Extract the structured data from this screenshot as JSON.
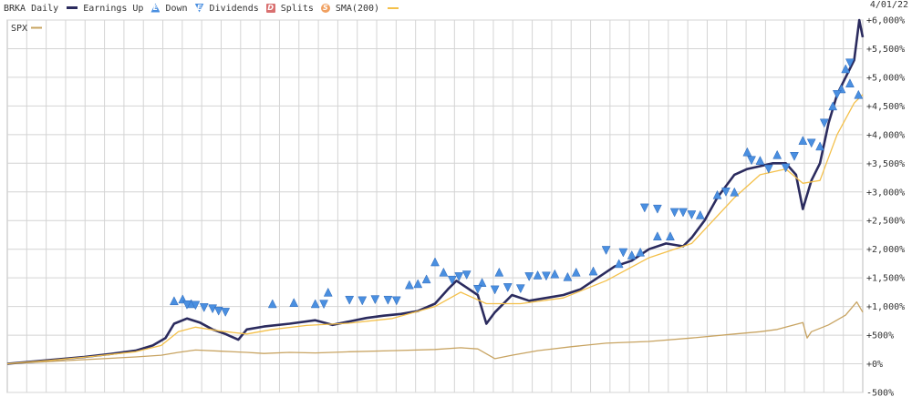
{
  "legend": {
    "ticker": "BRKA Daily",
    "earnings": "Earnings Up",
    "down": "Down",
    "dividends": "Dividends",
    "splits": "Splits",
    "sma": "SMA(200)",
    "compare": "SPX"
  },
  "date": "4/01/22",
  "colors": {
    "brka": "#2b2b5e",
    "spx": "#c8a462",
    "sma": "#f4c04a",
    "grid": "#d4d4d4",
    "marker": "#4a8fe0"
  },
  "chart_data": {
    "type": "line",
    "x_range": [
      0,
      100
    ],
    "ylim": [
      -500,
      6000
    ],
    "y_ticks": [
      "+6,000%",
      "+5,500%",
      "+5,000%",
      "+4,500%",
      "+4,000%",
      "+3,500%",
      "+3,000%",
      "+2,500%",
      "+2,000%",
      "+1,500%",
      "+1,000%",
      "+500%",
      "+0%",
      "-500%"
    ],
    "y_tick_values": [
      6000,
      5500,
      5000,
      4500,
      4000,
      3500,
      3000,
      2500,
      2000,
      1500,
      1000,
      500,
      0,
      -500
    ],
    "grid": true,
    "series": [
      {
        "name": "BRKA Daily",
        "points": [
          [
            0,
            0
          ],
          [
            3,
            40
          ],
          [
            6,
            80
          ],
          [
            9,
            120
          ],
          [
            12,
            170
          ],
          [
            15,
            230
          ],
          [
            17,
            320
          ],
          [
            18.5,
            450
          ],
          [
            19.5,
            700
          ],
          [
            21,
            790
          ],
          [
            22.5,
            720
          ],
          [
            24,
            600
          ],
          [
            25.5,
            520
          ],
          [
            27,
            420
          ],
          [
            28,
            600
          ],
          [
            30,
            650
          ],
          [
            33,
            700
          ],
          [
            36,
            760
          ],
          [
            38,
            680
          ],
          [
            40,
            740
          ],
          [
            42,
            800
          ],
          [
            44,
            840
          ],
          [
            46,
            870
          ],
          [
            48,
            920
          ],
          [
            50,
            1050
          ],
          [
            51.5,
            1300
          ],
          [
            52.5,
            1450
          ],
          [
            53.5,
            1350
          ],
          [
            55,
            1200
          ],
          [
            56,
            700
          ],
          [
            57,
            900
          ],
          [
            59,
            1200
          ],
          [
            61,
            1100
          ],
          [
            63,
            1150
          ],
          [
            65,
            1200
          ],
          [
            67,
            1300
          ],
          [
            69,
            1500
          ],
          [
            71,
            1700
          ],
          [
            73,
            1800
          ],
          [
            75,
            2000
          ],
          [
            77,
            2100
          ],
          [
            79,
            2050
          ],
          [
            80,
            2200
          ],
          [
            81.5,
            2500
          ],
          [
            83,
            2900
          ],
          [
            85,
            3300
          ],
          [
            86.5,
            3400
          ],
          [
            88,
            3450
          ],
          [
            89.5,
            3500
          ],
          [
            91,
            3500
          ],
          [
            92.2,
            3300
          ],
          [
            93,
            2700
          ],
          [
            94,
            3200
          ],
          [
            95,
            3500
          ],
          [
            96,
            4200
          ],
          [
            97,
            4700
          ],
          [
            98,
            5000
          ],
          [
            99,
            5300
          ],
          [
            99.6,
            6000
          ],
          [
            100,
            5700
          ]
        ]
      },
      {
        "name": "SMA(200)",
        "points": [
          [
            0,
            0
          ],
          [
            5,
            60
          ],
          [
            10,
            130
          ],
          [
            15,
            210
          ],
          [
            18,
            320
          ],
          [
            20,
            560
          ],
          [
            22,
            640
          ],
          [
            25,
            570
          ],
          [
            28,
            520
          ],
          [
            31,
            600
          ],
          [
            35,
            670
          ],
          [
            40,
            710
          ],
          [
            45,
            790
          ],
          [
            50,
            1000
          ],
          [
            53,
            1250
          ],
          [
            56,
            1050
          ],
          [
            60,
            1050
          ],
          [
            65,
            1150
          ],
          [
            70,
            1450
          ],
          [
            75,
            1850
          ],
          [
            80,
            2100
          ],
          [
            85,
            2900
          ],
          [
            88,
            3300
          ],
          [
            91,
            3400
          ],
          [
            93,
            3150
          ],
          [
            95,
            3200
          ],
          [
            97,
            4000
          ],
          [
            99,
            4550
          ],
          [
            100,
            4700
          ]
        ]
      },
      {
        "name": "SPX",
        "points": [
          [
            0,
            0
          ],
          [
            5,
            40
          ],
          [
            10,
            80
          ],
          [
            15,
            120
          ],
          [
            18,
            150
          ],
          [
            20,
            200
          ],
          [
            22,
            240
          ],
          [
            25,
            220
          ],
          [
            28,
            200
          ],
          [
            30,
            180
          ],
          [
            33,
            200
          ],
          [
            36,
            190
          ],
          [
            40,
            210
          ],
          [
            45,
            230
          ],
          [
            50,
            250
          ],
          [
            53,
            280
          ],
          [
            55,
            260
          ],
          [
            57,
            90
          ],
          [
            59,
            150
          ],
          [
            62,
            230
          ],
          [
            66,
            300
          ],
          [
            70,
            360
          ],
          [
            75,
            390
          ],
          [
            80,
            450
          ],
          [
            85,
            520
          ],
          [
            88,
            560
          ],
          [
            90,
            600
          ],
          [
            93,
            720
          ],
          [
            93.5,
            450
          ],
          [
            94,
            560
          ],
          [
            96,
            680
          ],
          [
            98,
            850
          ],
          [
            99.3,
            1080
          ],
          [
            100,
            900
          ]
        ]
      }
    ],
    "earnings_up_markers": [
      [
        19.5,
        1100
      ],
      [
        20.5,
        1130
      ],
      [
        21.5,
        1050
      ],
      [
        31,
        1050
      ],
      [
        33.5,
        1070
      ],
      [
        36,
        1050
      ],
      [
        37.5,
        1250
      ],
      [
        47,
        1380
      ],
      [
        48,
        1400
      ],
      [
        49,
        1480
      ],
      [
        50,
        1780
      ],
      [
        51,
        1600
      ],
      [
        55.5,
        1420
      ],
      [
        57.5,
        1600
      ],
      [
        62,
        1550
      ],
      [
        64,
        1570
      ],
      [
        65.5,
        1520
      ],
      [
        66.5,
        1600
      ],
      [
        68.5,
        1620
      ],
      [
        71.5,
        1750
      ],
      [
        73,
        1900
      ],
      [
        74,
        1950
      ],
      [
        76,
        2230
      ],
      [
        77.5,
        2230
      ],
      [
        81,
        2600
      ],
      [
        83,
        2950
      ],
      [
        85,
        3000
      ],
      [
        86.5,
        3700
      ],
      [
        88,
        3550
      ],
      [
        90,
        3650
      ],
      [
        93,
        3900
      ],
      [
        95,
        3800
      ],
      [
        96.5,
        4500
      ],
      [
        97.5,
        4800
      ],
      [
        98,
        5150
      ],
      [
        98.5,
        4900
      ],
      [
        99.5,
        4700
      ]
    ],
    "earnings_down_markers": [
      [
        21,
        1030
      ],
      [
        22,
        1020
      ],
      [
        23,
        980
      ],
      [
        24,
        960
      ],
      [
        24.7,
        920
      ],
      [
        25.5,
        900
      ],
      [
        37,
        1040
      ],
      [
        40,
        1110
      ],
      [
        41.5,
        1100
      ],
      [
        43,
        1120
      ],
      [
        44.5,
        1110
      ],
      [
        45.5,
        1100
      ],
      [
        52,
        1460
      ],
      [
        52.8,
        1520
      ],
      [
        53.7,
        1550
      ],
      [
        55,
        1300
      ],
      [
        57,
        1290
      ],
      [
        58.5,
        1330
      ],
      [
        60,
        1310
      ],
      [
        61,
        1520
      ],
      [
        63,
        1530
      ],
      [
        70,
        1980
      ],
      [
        72,
        1940
      ],
      [
        74.5,
        2720
      ],
      [
        76,
        2700
      ],
      [
        78,
        2640
      ],
      [
        79,
        2640
      ],
      [
        80,
        2600
      ],
      [
        84,
        3000
      ],
      [
        87,
        3550
      ],
      [
        89,
        3400
      ],
      [
        91,
        3420
      ],
      [
        92,
        3620
      ],
      [
        94,
        3850
      ],
      [
        95.5,
        4200
      ],
      [
        97,
        4700
      ],
      [
        98.5,
        5250
      ]
    ]
  }
}
